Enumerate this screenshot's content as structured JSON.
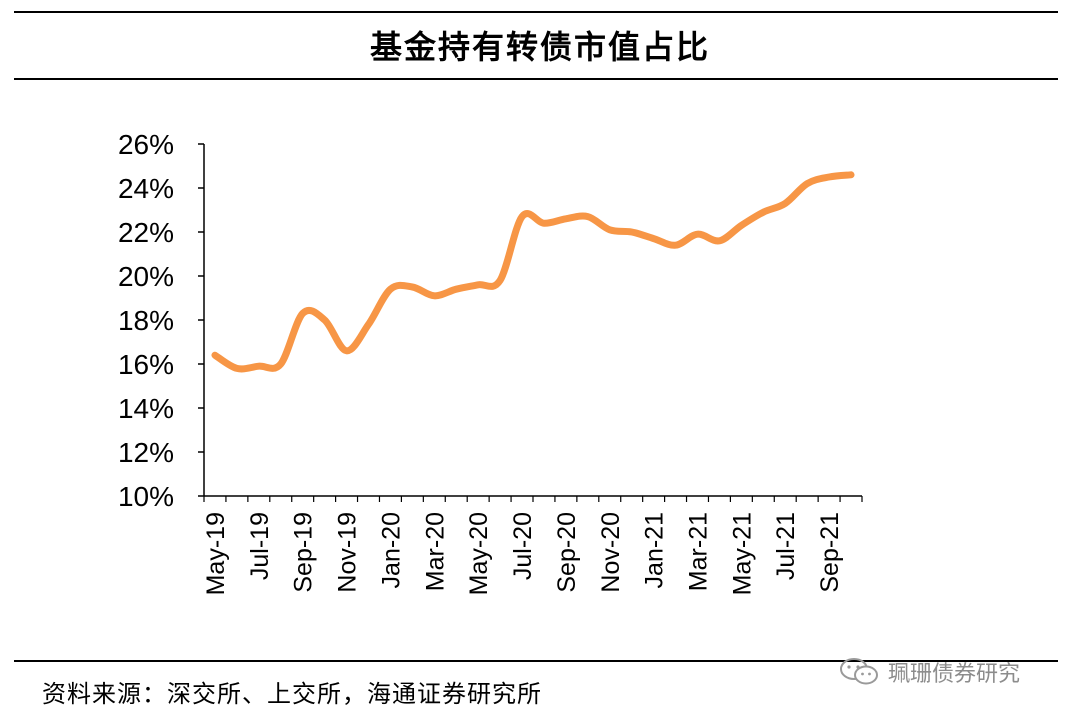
{
  "title": "基金持有转债市值占比",
  "footer": {
    "source": "资料来源：深交所、上交所，海通证券研究所",
    "watermark": "珮珊债券研究"
  },
  "chart_data": {
    "type": "line",
    "title": "基金持有转债市值占比",
    "xlabel": "",
    "ylabel": "",
    "ylim": [
      10,
      26
    ],
    "y_ticks": [
      10,
      12,
      14,
      16,
      18,
      20,
      22,
      24,
      26
    ],
    "y_tick_labels": [
      "10%",
      "12%",
      "14%",
      "16%",
      "18%",
      "20%",
      "22%",
      "24%",
      "26%"
    ],
    "x_tick_labels": [
      "May-19",
      "Jul-19",
      "Sep-19",
      "Nov-19",
      "Jan-20",
      "Mar-20",
      "May-20",
      "Jul-20",
      "Sep-20",
      "Nov-20",
      "Jan-21",
      "Mar-21",
      "May-21",
      "Jul-21",
      "Sep-21"
    ],
    "color": "#F79646",
    "series": [
      {
        "name": "",
        "values": [
          [
            "2019-05",
            16.4
          ],
          [
            "2019-06",
            15.8
          ],
          [
            "2019-07",
            15.9
          ],
          [
            "2019-08",
            16.0
          ],
          [
            "2019-09",
            18.3
          ],
          [
            "2019-10",
            18.0
          ],
          [
            "2019-11",
            16.6
          ],
          [
            "2019-12",
            17.8
          ],
          [
            "2020-01",
            19.4
          ],
          [
            "2020-02",
            19.5
          ],
          [
            "2020-03",
            19.1
          ],
          [
            "2020-04",
            19.4
          ],
          [
            "2020-05",
            19.6
          ],
          [
            "2020-06",
            19.8
          ],
          [
            "2020-07",
            22.7
          ],
          [
            "2020-08",
            22.4
          ],
          [
            "2020-09",
            22.6
          ],
          [
            "2020-10",
            22.7
          ],
          [
            "2020-11",
            22.1
          ],
          [
            "2020-12",
            22.0
          ],
          [
            "2021-01",
            21.7
          ],
          [
            "2021-02",
            21.4
          ],
          [
            "2021-03",
            21.9
          ],
          [
            "2021-04",
            21.6
          ],
          [
            "2021-05",
            22.3
          ],
          [
            "2021-06",
            22.9
          ],
          [
            "2021-07",
            23.3
          ],
          [
            "2021-08",
            24.2
          ],
          [
            "2021-09",
            24.5
          ],
          [
            "2021-10",
            24.6
          ]
        ]
      }
    ]
  }
}
